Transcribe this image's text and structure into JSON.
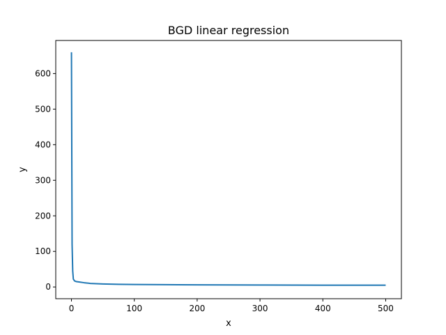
{
  "chart_data": {
    "type": "line",
    "title": "BGD linear regression",
    "xlabel": "x",
    "ylabel": "y",
    "xlim": [
      -25,
      525
    ],
    "ylim": [
      -33,
      693
    ],
    "xticks": [
      0,
      100,
      200,
      300,
      400,
      500
    ],
    "yticks": [
      0,
      100,
      200,
      300,
      400,
      500,
      600
    ],
    "grid": false,
    "legend": "none",
    "series": [
      {
        "color": "#1f77b4",
        "x": [
          0,
          1,
          2,
          3,
          5,
          8,
          12,
          20,
          30,
          50,
          75,
          100,
          150,
          200,
          300,
          400,
          500
        ],
        "y": [
          660,
          120,
          45,
          22,
          17,
          15,
          14,
          12,
          10,
          8.5,
          7.5,
          7,
          6.5,
          6,
          5.5,
          5,
          5
        ]
      }
    ]
  }
}
